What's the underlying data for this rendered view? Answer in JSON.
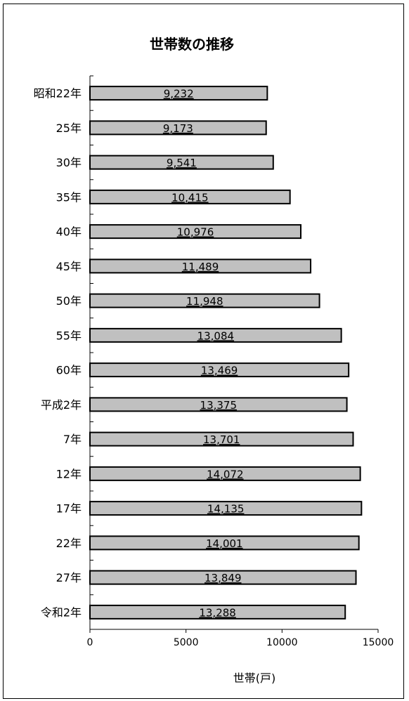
{
  "chart_data": {
    "type": "bar",
    "orientation": "horizontal",
    "title": "世帯数の推移",
    "xlabel": "世帯(戸)",
    "ylabel": "",
    "categories": [
      "昭和22年",
      "25年",
      "30年",
      "35年",
      "40年",
      "45年",
      "50年",
      "55年",
      "60年",
      "平成2年",
      "7年",
      "12年",
      "17年",
      "22年",
      "27年",
      "令和2年"
    ],
    "values": [
      9232,
      9173,
      9541,
      10415,
      10976,
      11489,
      11948,
      13084,
      13469,
      13375,
      13701,
      14072,
      14135,
      14001,
      13849,
      13288
    ],
    "value_labels": [
      "9,232",
      "9,173",
      "9,541",
      "10,415",
      "10,976",
      "11,489",
      "11,948",
      "13,084",
      "13,469",
      "13,375",
      "13,701",
      "14,072",
      "14,135",
      "14,001",
      "13,849",
      "13,288"
    ],
    "xlim": [
      0,
      15000
    ],
    "xticks": [
      0,
      5000,
      10000,
      15000
    ],
    "xtick_labels": [
      "0",
      "5000",
      "10000",
      "15000"
    ],
    "grid": false,
    "colors": {
      "bar_fill": "#c0c0c0",
      "bar_stroke": "#000000"
    }
  }
}
